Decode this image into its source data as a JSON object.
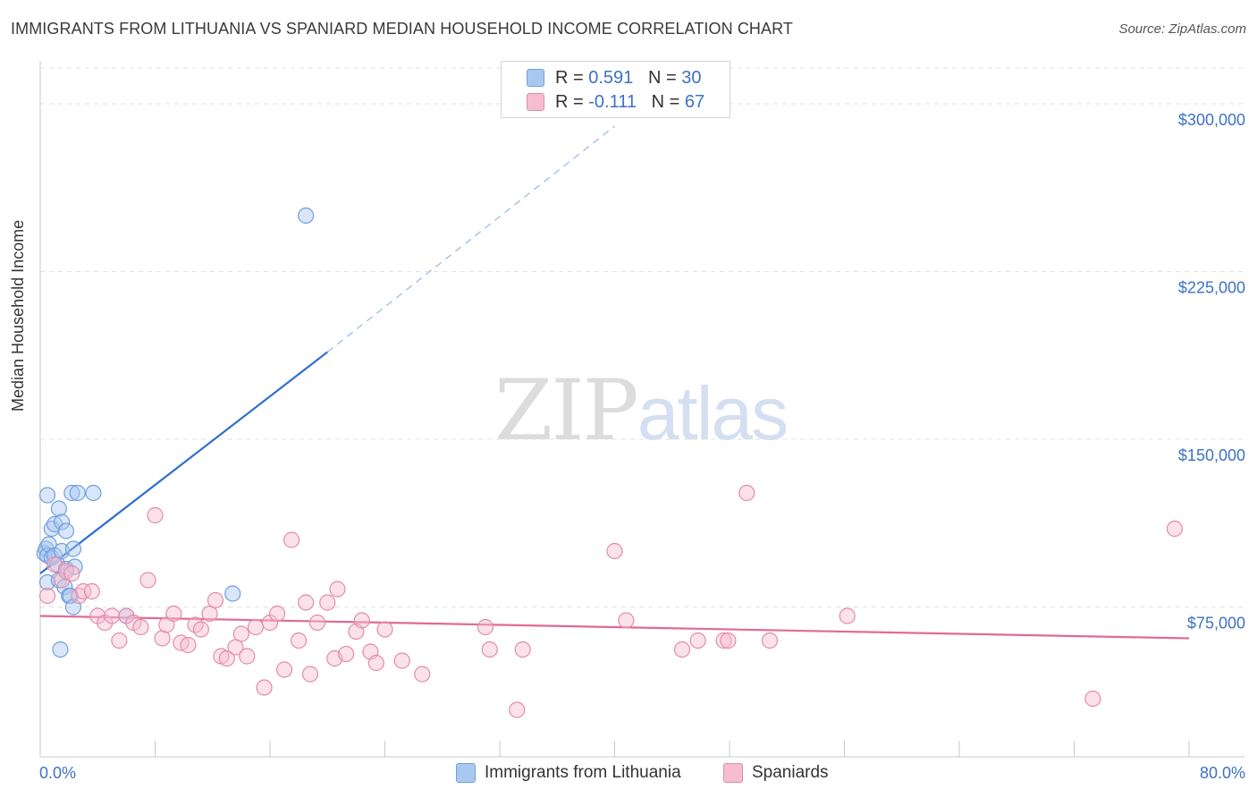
{
  "header": {
    "title": "IMMIGRANTS FROM LITHUANIA VS SPANIARD MEDIAN HOUSEHOLD INCOME CORRELATION CHART",
    "source": "Source: ZipAtlas.com"
  },
  "watermark": {
    "zip": "ZIP",
    "atlas": "atlas"
  },
  "legend_top": {
    "rows": [
      {
        "r_label": "R =",
        "r_value": "0.591",
        "n_label": "N =",
        "n_value": "30",
        "color": "#a9c8f0"
      },
      {
        "r_label": "R =",
        "r_value": "-0.111",
        "n_label": "N =",
        "n_value": "67",
        "color": "#f6bcd0"
      }
    ]
  },
  "legend_bottom": {
    "items": [
      {
        "label": "Immigrants from Lithuania",
        "color": "#a9c8f0"
      },
      {
        "label": "Spaniards",
        "color": "#f6bcd0"
      }
    ]
  },
  "chart_data": {
    "type": "scatter",
    "ylabel": "Median Household Income",
    "xlim": [
      0,
      80
    ],
    "ylim": [
      8000,
      316000
    ],
    "x_tick_labels": {
      "min": "0.0%",
      "max": "80.0%"
    },
    "y_ticks": [
      {
        "value": 75000,
        "label": "$75,000"
      },
      {
        "value": 150000,
        "label": "$150,000"
      },
      {
        "value": 225000,
        "label": "$225,000"
      },
      {
        "value": 300000,
        "label": "$300,000"
      }
    ],
    "grid": true,
    "series": [
      {
        "name": "Immigrants from Lithuania",
        "color": "#a9c8f0",
        "stroke": "#6f9fdc",
        "trend_color": "#2f6fcc",
        "trend": {
          "x_start": 0,
          "y_start": 90000,
          "x_solid_end": 20,
          "y_solid_end": 189000,
          "x_dash_end": 40,
          "y_dash_end": 290000
        },
        "points": [
          [
            0.3,
            99000
          ],
          [
            0.4,
            101000
          ],
          [
            0.5,
            98000
          ],
          [
            0.5,
            86000
          ],
          [
            0.5,
            125000
          ],
          [
            0.6,
            103000
          ],
          [
            0.8,
            97000
          ],
          [
            0.8,
            110000
          ],
          [
            1.0,
            112000
          ],
          [
            1.0,
            98000
          ],
          [
            1.2,
            94000
          ],
          [
            1.3,
            119000
          ],
          [
            1.3,
            87000
          ],
          [
            1.4,
            56000
          ],
          [
            1.5,
            100000
          ],
          [
            1.5,
            113000
          ],
          [
            1.7,
            84000
          ],
          [
            1.8,
            109000
          ],
          [
            1.8,
            92000
          ],
          [
            2.0,
            80000
          ],
          [
            2.1,
            80000
          ],
          [
            2.2,
            126000
          ],
          [
            2.3,
            101000
          ],
          [
            2.3,
            75000
          ],
          [
            2.4,
            93000
          ],
          [
            2.6,
            126000
          ],
          [
            3.7,
            126000
          ],
          [
            6.0,
            71000
          ],
          [
            13.4,
            81000
          ],
          [
            18.5,
            250000
          ]
        ]
      },
      {
        "name": "Spaniards",
        "color": "#f6bcd0",
        "stroke": "#e38aab",
        "trend_color": "#e06a95",
        "trend": {
          "x_start": 0,
          "y_start": 71000,
          "x_end": 80,
          "y_end": 61000
        },
        "points": [
          [
            0.5,
            80000
          ],
          [
            1.0,
            94000
          ],
          [
            1.5,
            87000
          ],
          [
            1.8,
            91000
          ],
          [
            2.2,
            90000
          ],
          [
            2.7,
            80000
          ],
          [
            3.0,
            82000
          ],
          [
            3.6,
            82000
          ],
          [
            4.0,
            71000
          ],
          [
            4.5,
            68000
          ],
          [
            5.0,
            71000
          ],
          [
            5.5,
            60000
          ],
          [
            6.0,
            71000
          ],
          [
            6.5,
            68000
          ],
          [
            7.0,
            66000
          ],
          [
            7.5,
            87000
          ],
          [
            8.0,
            116000
          ],
          [
            8.5,
            61000
          ],
          [
            8.8,
            67000
          ],
          [
            9.3,
            72000
          ],
          [
            9.8,
            59000
          ],
          [
            10.3,
            58000
          ],
          [
            10.8,
            67000
          ],
          [
            11.2,
            65000
          ],
          [
            11.8,
            72000
          ],
          [
            12.2,
            78000
          ],
          [
            12.6,
            53000
          ],
          [
            13.0,
            52000
          ],
          [
            13.6,
            57000
          ],
          [
            14.0,
            63000
          ],
          [
            14.4,
            53000
          ],
          [
            15.0,
            66000
          ],
          [
            15.6,
            39000
          ],
          [
            16.0,
            68000
          ],
          [
            16.5,
            72000
          ],
          [
            17.0,
            47000
          ],
          [
            17.5,
            105000
          ],
          [
            18.0,
            60000
          ],
          [
            18.5,
            77000
          ],
          [
            18.8,
            45000
          ],
          [
            19.3,
            68000
          ],
          [
            20.0,
            77000
          ],
          [
            20.5,
            52000
          ],
          [
            20.7,
            83000
          ],
          [
            21.3,
            54000
          ],
          [
            22.0,
            64000
          ],
          [
            22.4,
            69000
          ],
          [
            23.0,
            55000
          ],
          [
            23.4,
            50000
          ],
          [
            24.0,
            65000
          ],
          [
            25.2,
            51000
          ],
          [
            26.6,
            45000
          ],
          [
            31.0,
            66000
          ],
          [
            31.3,
            56000
          ],
          [
            33.2,
            29000
          ],
          [
            33.6,
            56000
          ],
          [
            40.0,
            100000
          ],
          [
            40.8,
            69000
          ],
          [
            44.7,
            56000
          ],
          [
            45.8,
            60000
          ],
          [
            47.6,
            60000
          ],
          [
            47.9,
            60000
          ],
          [
            49.2,
            126000
          ],
          [
            50.8,
            60000
          ],
          [
            56.2,
            71000
          ],
          [
            73.3,
            34000
          ],
          [
            79.0,
            110000
          ]
        ]
      }
    ]
  }
}
